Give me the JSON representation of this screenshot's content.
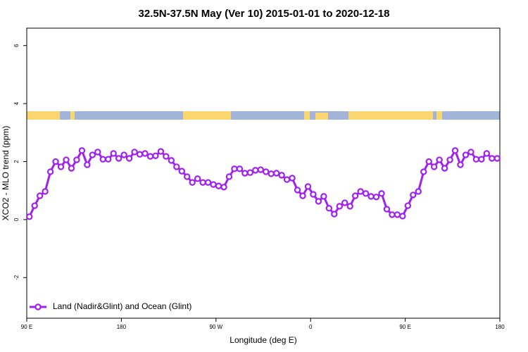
{
  "chart_data": {
    "type": "line",
    "title": "32.5N-37.5N May (Ver 10)   2015-01-01 to 2020-12-18",
    "x_label": "Longitude (deg E)",
    "y_label": "XCO2 - MLO trend (ppm)",
    "x": [
      92.5,
      97.5,
      102.5,
      107.5,
      112.5,
      117.5,
      122.5,
      127.5,
      132.5,
      137.5,
      142.5,
      147.5,
      152.5,
      157.5,
      162.5,
      167.5,
      172.5,
      177.5,
      182.5,
      187.5,
      192.5,
      197.5,
      202.5,
      207.5,
      212.5,
      217.5,
      222.5,
      227.5,
      232.5,
      237.5,
      242.5,
      247.5,
      252.5,
      257.5,
      262.5,
      267.5,
      272.5,
      277.5,
      282.5,
      287.5,
      292.5,
      297.5,
      302.5,
      307.5,
      312.5,
      317.5,
      322.5,
      327.5,
      332.5,
      337.5,
      342.5,
      347.5,
      352.5,
      357.5,
      362.5,
      367.5,
      372.5,
      377.5,
      382.5,
      387.5,
      392.5,
      397.5,
      402.5,
      407.5,
      412.5,
      417.5,
      422.5,
      427.5,
      432.5,
      437.5,
      442.5,
      447.5,
      452.5,
      457.5,
      462.5,
      467.5,
      472.5,
      477.5,
      482.5,
      487.5,
      492.5,
      497.5,
      502.5,
      507.5,
      512.5,
      517.5,
      522.5,
      527.5,
      532.5,
      537.5
    ],
    "series": [
      {
        "name": "Land (Nadir&Glint) and Ocean (Glint)",
        "color": "#a020f0",
        "values": [
          0.1,
          0.48,
          0.82,
          0.97,
          1.65,
          2.0,
          1.82,
          2.06,
          1.77,
          2.06,
          2.38,
          1.89,
          2.23,
          2.33,
          2.08,
          2.08,
          2.28,
          2.11,
          2.23,
          2.11,
          2.33,
          2.25,
          2.28,
          2.18,
          2.2,
          2.35,
          2.18,
          2.04,
          1.82,
          1.67,
          1.48,
          1.28,
          1.41,
          1.28,
          1.28,
          1.21,
          1.16,
          1.12,
          1.48,
          1.75,
          1.75,
          1.6,
          1.62,
          1.7,
          1.72,
          1.65,
          1.58,
          1.6,
          1.53,
          1.38,
          1.43,
          1.02,
          0.82,
          1.14,
          0.87,
          0.63,
          0.8,
          0.39,
          0.19,
          0.46,
          0.58,
          0.46,
          0.82,
          0.97,
          0.9,
          0.8,
          0.78,
          0.9,
          0.36,
          0.17,
          0.17,
          0.12,
          0.48,
          0.85,
          0.97,
          1.65,
          2.0,
          1.82,
          2.06,
          1.77,
          2.06,
          2.38,
          1.89,
          2.23,
          2.33,
          2.08,
          2.08,
          2.28,
          2.11,
          2.11
        ]
      }
    ],
    "xlim": [
      90,
      540
    ],
    "xticks": [
      {
        "value": 90,
        "label": "90 E"
      },
      180,
      {
        "value": 270,
        "label": "90 W"
      },
      {
        "value": 360,
        "label": "0"
      },
      {
        "value": 450,
        "label": "90 E"
      },
      {
        "value": 540,
        "label": "180"
      }
    ],
    "ylim": [
      -3.4,
      6.6
    ],
    "yticks": [
      -2,
      0,
      2,
      4,
      6
    ],
    "legend": "bottom-left"
  }
}
